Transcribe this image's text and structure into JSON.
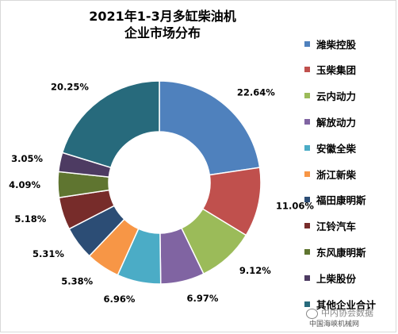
{
  "chart_data": {
    "type": "pie",
    "title_lines": [
      "2021年1-3月多缸柴油机",
      "企业市场分布"
    ],
    "labels": [
      "潍柴控股",
      "玉柴集团",
      "云内动力",
      "解放动力",
      "安徽全柴",
      "浙江新柴",
      "福田康明斯",
      "江铃汽车",
      "东风康明斯",
      "上柴股份",
      "其他企业合计"
    ],
    "values": [
      22.64,
      11.06,
      9.12,
      6.97,
      6.96,
      5.38,
      5.31,
      5.18,
      4.09,
      3.05,
      20.25
    ],
    "value_labels": [
      "22.64%",
      "11.06%",
      "9.12%",
      "6.97%",
      "6.96%",
      "5.38%",
      "5.31%",
      "5.18%",
      "4.09%",
      "3.05%",
      "20.25%"
    ],
    "colors": [
      "#4f81bd",
      "#c0504d",
      "#9bbb59",
      "#8064a2",
      "#4bacc6",
      "#f79646",
      "#2c4d75",
      "#772c2a",
      "#5f7530",
      "#4d3b62",
      "#276a7c"
    ],
    "donut": true,
    "legend_position": "right"
  },
  "watermark": {
    "main": "中内协会数据",
    "sub": "中国海峡机械网"
  }
}
